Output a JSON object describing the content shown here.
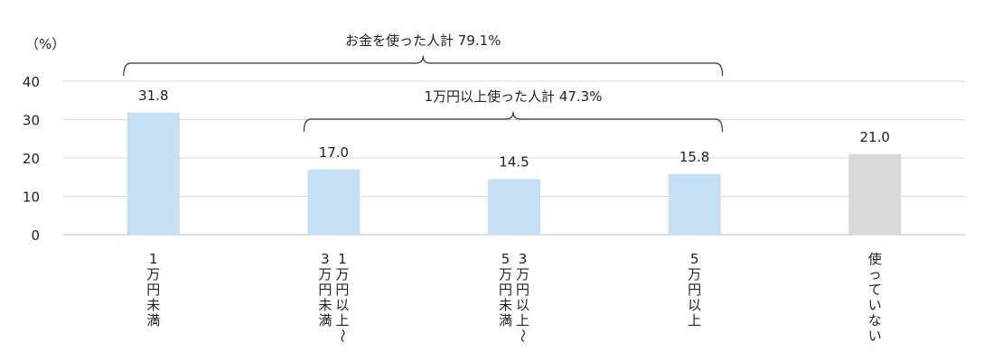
{
  "chart_data": {
    "type": "bar",
    "unit_label": "（%）",
    "yticks": [
      "40",
      "30",
      "20",
      "10",
      "0"
    ],
    "ylim": [
      0,
      40
    ],
    "grid": true,
    "categories": [
      [
        "1",
        "万",
        "円",
        "未",
        "満"
      ],
      [
        "3",
        "万",
        "円",
        "未",
        "満"
      ],
      [
        "5",
        "万",
        "円",
        "未",
        "満"
      ],
      [
        "5",
        "万",
        "円",
        "以",
        "上"
      ],
      [
        "使",
        "っ",
        "て",
        "い",
        "な",
        "い"
      ]
    ],
    "category_second_columns": [
      null,
      [
        "1",
        "万",
        "円",
        "以",
        "上",
        "～"
      ],
      [
        "3",
        "万",
        "円",
        "以",
        "上",
        "～"
      ],
      null,
      null
    ],
    "values": [
      31.8,
      17.0,
      14.5,
      15.8,
      21.0
    ],
    "value_labels": [
      "31.8",
      "17.0",
      "14.5",
      "15.8",
      "21.0"
    ],
    "bar_colors": [
      "#c5dff5",
      "#c5dff5",
      "#c5dff5",
      "#c5dff5",
      "#d9d9d9"
    ],
    "annotations": [
      {
        "text": "お金を使った人計 79.1%",
        "from_index": 0,
        "to_index": 3
      },
      {
        "text": "1万円以上使った人計 47.3%",
        "from_index": 1,
        "to_index": 3
      }
    ]
  }
}
